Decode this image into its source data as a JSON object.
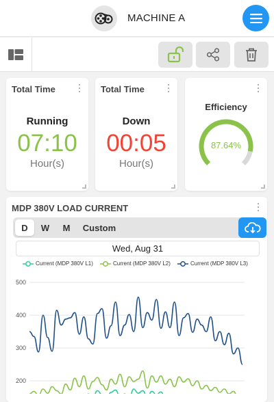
{
  "header": {
    "title": "MACHINE A",
    "logo_icon": "film-reel-icon",
    "menu_icon": "hamburger-menu-icon"
  },
  "toolbar": {
    "icons": [
      "layout-toggle-icon",
      "unlock-icon",
      "share-icon",
      "trash-icon"
    ]
  },
  "cards": [
    {
      "title": "Total Time",
      "label": "Running",
      "value": "07:10",
      "unit": "Hour(s)",
      "color": "#8bc34a"
    },
    {
      "title": "Total Time",
      "label": "Down",
      "value": "00:05",
      "unit": "Hour(s)",
      "color": "#f44336"
    }
  ],
  "efficiency": {
    "label": "Efficiency",
    "value_text": "87.64%",
    "fraction": 0.8764,
    "color": "#8bc34a",
    "track_color": "#d9d9d9"
  },
  "chart_card": {
    "title": "MDP 380V LOAD CURRENT",
    "tabs": [
      {
        "label": "D",
        "active": true
      },
      {
        "label": "W"
      },
      {
        "label": "M"
      },
      {
        "label": "Custom"
      }
    ],
    "date": "Wed, Aug 31",
    "download_icon": "cloud-download-icon"
  },
  "chart_data": {
    "type": "line",
    "xlabel": "",
    "ylabel": "",
    "ylim": [
      150,
      500
    ],
    "yticks": [
      500,
      400,
      300,
      200
    ],
    "grid": true,
    "legend_position": "top",
    "series": [
      {
        "name": "Current (MDP 380V L1)",
        "color": "#2ecc9a",
        "values": [
          130,
          125,
          118,
          122,
          116,
          128,
          120,
          114,
          132,
          126,
          135,
          140,
          128,
          160,
          150,
          170,
          158,
          145,
          165,
          172,
          150,
          160,
          148,
          175,
          162,
          170,
          150,
          168,
          158,
          166,
          148,
          155,
          140,
          150,
          132,
          145,
          128,
          140,
          120,
          130,
          118,
          125,
          110,
          120,
          115,
          108,
          112,
          105
        ]
      },
      {
        "name": "Current (MDP 380V L2)",
        "color": "#8bc34a",
        "values": [
          160,
          168,
          155,
          175,
          162,
          182,
          170,
          160,
          190,
          172,
          208,
          182,
          215,
          175,
          198,
          210,
          188,
          172,
          205,
          190,
          220,
          182,
          212,
          198,
          205,
          230,
          178,
          215,
          196,
          215,
          190,
          205,
          182,
          212,
          196,
          206,
          185,
          200,
          175,
          186,
          170,
          180,
          165,
          175,
          160,
          168,
          150,
          158
        ]
      },
      {
        "name": "Current (MDP 380V L3)",
        "color": "#1e4f8a",
        "values": [
          350,
          335,
          288,
          400,
          332,
          290,
          415,
          370,
          388,
          392,
          408,
          342,
          395,
          328,
          312,
          405,
          420,
          330,
          368,
          440,
          338,
          370,
          402,
          350,
          455,
          362,
          408,
          385,
          448,
          360,
          410,
          362,
          440,
          338,
          392,
          405,
          348,
          388,
          370,
          350,
          395,
          322,
          350,
          310,
          345,
          282,
          300,
          250
        ]
      }
    ]
  }
}
